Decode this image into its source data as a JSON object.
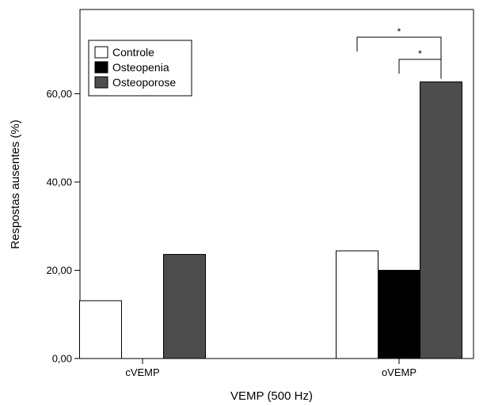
{
  "chart_data": {
    "type": "bar",
    "title": "",
    "xlabel": "VEMP (500 Hz)",
    "ylabel": "Respostas ausentes (%)",
    "categories": [
      "cVEMP",
      "oVEMP"
    ],
    "ylim": [
      0,
      74
    ],
    "yticks": [
      0,
      20,
      40,
      60
    ],
    "ytick_labels": [
      "0,00",
      "20,00",
      "40,00",
      "60,00"
    ],
    "series": [
      {
        "name": "Controle",
        "color": "#ffffff",
        "values": [
          13.1,
          24.4
        ]
      },
      {
        "name": "Osteopenia",
        "color": "#000000",
        "values": [
          0,
          20.0
        ]
      },
      {
        "name": "Osteoporose",
        "color": "#4d4d4d",
        "values": [
          23.6,
          62.7
        ]
      }
    ],
    "legend_position": "top-left",
    "grid": false,
    "significance": [
      {
        "category": "oVEMP",
        "from_series": 0,
        "to_series": 2,
        "label": "*"
      },
      {
        "category": "oVEMP",
        "from_series": 1,
        "to_series": 2,
        "label": "*"
      }
    ]
  }
}
